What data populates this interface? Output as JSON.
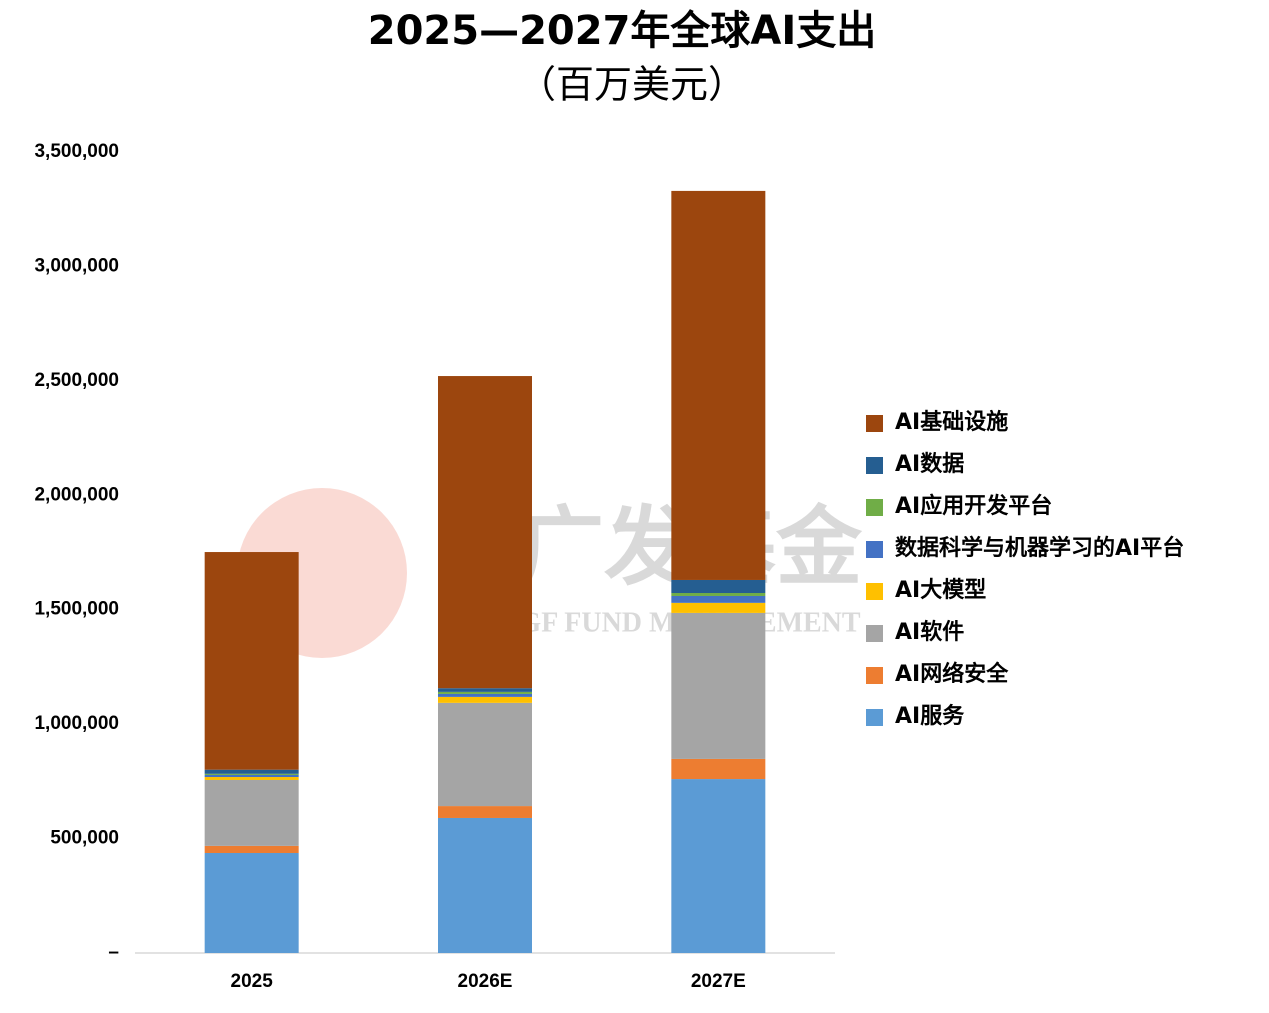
{
  "chart_data": {
    "type": "stacked_bar",
    "title": "2025—2027年全球AI支出",
    "subtitle": "（百万美元）",
    "watermark": [
      "广发基金",
      "GF FUND MANAGEMENT"
    ],
    "categories": [
      "2025",
      "2026E",
      "2027E"
    ],
    "series": [
      {
        "name": "AI服务",
        "color": "#5B9BD5",
        "values": [
          437000,
          590000,
          760000
        ]
      },
      {
        "name": "AI网络安全",
        "color": "#ED7D31",
        "values": [
          31000,
          52000,
          88000
        ]
      },
      {
        "name": "AI软件",
        "color": "#A5A5A5",
        "values": [
          288000,
          451000,
          638000
        ]
      },
      {
        "name": "AI大模型",
        "color": "#FFC000",
        "values": [
          13000,
          26000,
          44000
        ]
      },
      {
        "name": "数据科学与机器学习的AI平台",
        "color": "#4472C4",
        "values": [
          9000,
          13000,
          30000
        ]
      },
      {
        "name": "AI应用开发平台",
        "color": "#70AD47",
        "values": [
          5000,
          9000,
          13000
        ]
      },
      {
        "name": "AI数据",
        "color": "#255E91",
        "values": [
          18000,
          16000,
          57000
        ]
      },
      {
        "name": "AI基础设施",
        "color": "#9C460E",
        "values": [
          951000,
          1364000,
          1700000
        ]
      }
    ],
    "ylim": [
      0,
      3500000
    ],
    "yticks": [
      {
        "value": 0,
        "label": "–"
      },
      {
        "value": 500000,
        "label": "500,000"
      },
      {
        "value": 1000000,
        "label": "1,000,000"
      },
      {
        "value": 1500000,
        "label": "1,500,000"
      },
      {
        "value": 2000000,
        "label": "2,000,000"
      },
      {
        "value": 2500000,
        "label": "2,500,000"
      },
      {
        "value": 3000000,
        "label": "3,000,000"
      },
      {
        "value": 3500000,
        "label": "3,500,000"
      }
    ],
    "legend": "right"
  }
}
